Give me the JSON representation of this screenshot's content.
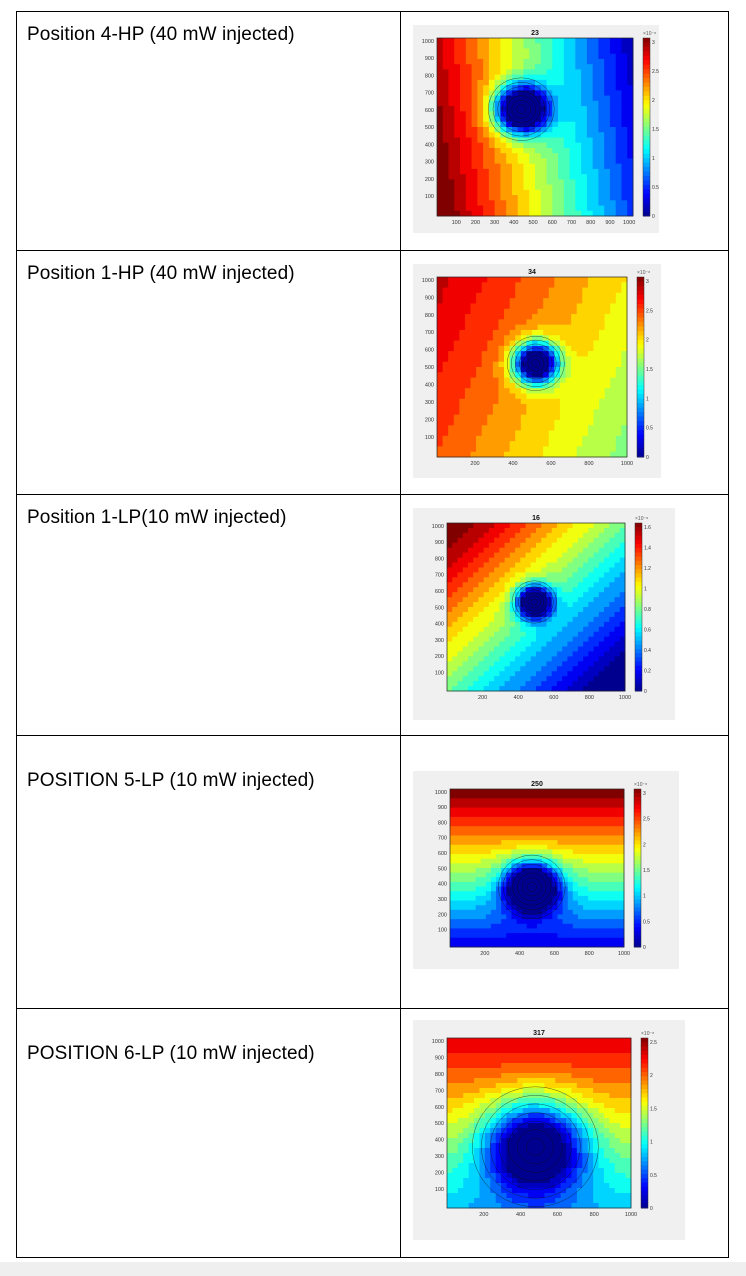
{
  "table": {
    "rows": [
      {
        "label": "Position 4-HP (40 mW injected)",
        "figure": {
          "title": "23",
          "x_ticks": [
            "100",
            "200",
            "300",
            "400",
            "500",
            "600",
            "700",
            "800",
            "900",
            "1000"
          ],
          "y_ticks": [
            "1000",
            "900",
            "800",
            "700",
            "600",
            "500",
            "400",
            "300",
            "200",
            "100"
          ],
          "cb_exponent": "×10⁻⁸",
          "cb_ticks": [
            "3",
            "2.5",
            "2",
            "1.5",
            "1",
            "0.5",
            "0"
          ]
        }
      },
      {
        "label": "Position 1-HP (40 mW injected)",
        "figure": {
          "title": "34",
          "x_ticks": [
            "200",
            "400",
            "600",
            "800",
            "1000"
          ],
          "y_ticks": [
            "1000",
            "900",
            "800",
            "700",
            "600",
            "500",
            "400",
            "300",
            "200",
            "100"
          ],
          "cb_exponent": "×10⁻⁸",
          "cb_ticks": [
            "3",
            "2.5",
            "2",
            "1.5",
            "1",
            "0.5",
            "0"
          ]
        }
      },
      {
        "label": "Position 1-LP(10 mW injected)",
        "figure": {
          "title": "16",
          "x_ticks": [
            "200",
            "400",
            "600",
            "800",
            "1000"
          ],
          "y_ticks": [
            "1000",
            "900",
            "800",
            "700",
            "600",
            "500",
            "400",
            "300",
            "200",
            "100"
          ],
          "cb_exponent": "×10⁻⁸",
          "cb_ticks": [
            "1.6",
            "1.4",
            "1.2",
            "1",
            "0.8",
            "0.6",
            "0.4",
            "0.2",
            "0"
          ]
        }
      },
      {
        "label": "POSITION 5-LP (10 mW injected)",
        "figure": {
          "title": "250",
          "x_ticks": [
            "200",
            "400",
            "600",
            "800",
            "1000"
          ],
          "y_ticks": [
            "1000",
            "900",
            "800",
            "700",
            "600",
            "500",
            "400",
            "300",
            "200",
            "100"
          ],
          "cb_exponent": "×10⁻⁸",
          "cb_ticks": [
            "3",
            "2.5",
            "2",
            "1.5",
            "1",
            "0.5",
            "0"
          ]
        }
      },
      {
        "label": "POSITION 6-LP (10 mW injected)",
        "figure": {
          "title": "317",
          "x_ticks": [
            "200",
            "400",
            "600",
            "800",
            "1000"
          ],
          "y_ticks": [
            "1000",
            "900",
            "800",
            "700",
            "600",
            "500",
            "400",
            "300",
            "200",
            "100"
          ],
          "cb_exponent": "×10⁻⁸",
          "cb_ticks": [
            "2.5",
            "2",
            "1.5",
            "1",
            "0.5",
            "0"
          ]
        }
      }
    ]
  },
  "colormap": {
    "stops": [
      "#00008f",
      "#0000ff",
      "#0080ff",
      "#00ffff",
      "#80ff80",
      "#ffff00",
      "#ff8000",
      "#ff0000",
      "#800000"
    ]
  }
}
